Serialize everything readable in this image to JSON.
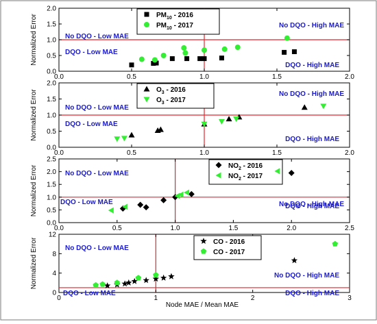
{
  "figure": {
    "ylabel": "Normalized Error",
    "xlabel": "Node MAE / Mean MAE"
  },
  "colors": {
    "threshold": "#e8232b",
    "zone_text": "#1a1acc",
    "series_2016": "#000000",
    "series_2017": "#33ee33"
  },
  "chart_data": [
    {
      "type": "scatter",
      "id": "pm10",
      "xlim": [
        0,
        2.0
      ],
      "ylim": [
        0,
        2.0
      ],
      "xticks": [
        "0.0",
        "0.5",
        "1.0",
        "1.5",
        "2.0"
      ],
      "xtick_values": [
        0,
        0.5,
        1.0,
        1.5,
        2.0
      ],
      "yticks": [
        "0.0",
        "0.5",
        "1.0",
        "1.5",
        "2.0"
      ],
      "ytick_values": [
        0,
        0.5,
        1.0,
        1.5,
        2.0
      ],
      "thresholds": {
        "x": 1.0,
        "y": 1.0
      },
      "zones": {
        "top_left": "No DQO - Low MAE",
        "top_right": "No DQO - High MAE",
        "bottom_left": "DQO - Low MAE",
        "bottom_right": "DQO - High MAE"
      },
      "legend_placement": "top-center",
      "series": [
        {
          "name": "PM",
          "sub": "10",
          "suffix": " - 2016",
          "marker": "square",
          "points": [
            [
              0.5,
              0.2
            ],
            [
              0.65,
              0.25
            ],
            [
              0.67,
              0.26
            ],
            [
              0.78,
              0.4
            ],
            [
              0.88,
              0.4
            ],
            [
              0.97,
              0.4
            ],
            [
              1.0,
              0.4
            ],
            [
              1.12,
              0.42
            ],
            [
              1.55,
              0.6
            ],
            [
              1.62,
              0.62
            ]
          ]
        },
        {
          "name": "PM",
          "sub": "10",
          "suffix": " - 2017",
          "marker": "circle",
          "points": [
            [
              0.57,
              0.38
            ],
            [
              0.66,
              0.36
            ],
            [
              0.72,
              0.5
            ],
            [
              0.86,
              0.74
            ],
            [
              0.87,
              0.58
            ],
            [
              1.0,
              0.67
            ],
            [
              1.14,
              0.7
            ],
            [
              1.23,
              0.76
            ],
            [
              1.57,
              1.05
            ]
          ]
        }
      ]
    },
    {
      "type": "scatter",
      "id": "o3",
      "xlim": [
        0,
        2.0
      ],
      "ylim": [
        0,
        2.0
      ],
      "xticks": [
        "0.0",
        "0.5",
        "1.0",
        "1.5",
        "2.0"
      ],
      "xtick_values": [
        0,
        0.5,
        1.0,
        1.5,
        2.0
      ],
      "yticks": [
        "0.0",
        "0.5",
        "1.0",
        "1.5",
        "2.0"
      ],
      "ytick_values": [
        0,
        0.5,
        1.0,
        1.5,
        2.0
      ],
      "thresholds": {
        "x": 1.0,
        "y": 1.0
      },
      "zones": {
        "top_left": "No DQO - Low MAE",
        "top_right": "No DQO - High MAE",
        "bottom_left": "DQO - Low MAE",
        "bottom_right": "DQO - High MAE"
      },
      "legend_placement": "top-center",
      "series": [
        {
          "name": "O",
          "sub": "3",
          "suffix": " - 2016",
          "marker": "triangle-up",
          "points": [
            [
              0.5,
              0.38
            ],
            [
              0.68,
              0.52
            ],
            [
              0.7,
              0.55
            ],
            [
              1.0,
              0.72
            ],
            [
              1.17,
              0.88
            ],
            [
              1.24,
              0.94
            ],
            [
              1.69,
              1.24
            ]
          ]
        },
        {
          "name": "O",
          "sub": "3",
          "suffix": " - 2017",
          "marker": "triangle-down",
          "points": [
            [
              0.4,
              0.26
            ],
            [
              0.45,
              0.28
            ],
            [
              1.0,
              0.72
            ],
            [
              1.12,
              0.8
            ],
            [
              1.22,
              0.88
            ],
            [
              1.82,
              1.28
            ]
          ]
        }
      ]
    },
    {
      "type": "scatter",
      "id": "no2",
      "xlim": [
        0,
        2.5
      ],
      "ylim": [
        0,
        2.5
      ],
      "xticks": [
        "0.0",
        "0.5",
        "1.0",
        "1.5",
        "2.0",
        "2.5"
      ],
      "xtick_values": [
        0,
        0.5,
        1.0,
        1.5,
        2.0,
        2.5
      ],
      "yticks": [
        "0.0",
        "0.5",
        "1.0",
        "1.5",
        "2.0",
        "2.5"
      ],
      "ytick_values": [
        0,
        0.5,
        1.0,
        1.5,
        2.0,
        2.5
      ],
      "thresholds": {
        "x": 1.0,
        "y": 1.0
      },
      "zones": {
        "top_left": "No DQO - Low MAE",
        "top_right": "No DQO - High MAE",
        "bottom_left": "DQO - Low MAE",
        "bottom_right": "DQO - High MAE"
      },
      "legend_placement": "top-center",
      "series": [
        {
          "name": "NO",
          "sub": "2",
          "suffix": " - 2016",
          "marker": "diamond",
          "points": [
            [
              0.55,
              0.55
            ],
            [
              0.7,
              0.7
            ],
            [
              0.75,
              0.6
            ],
            [
              0.9,
              0.88
            ],
            [
              1.0,
              1.0
            ],
            [
              1.14,
              1.12
            ],
            [
              2.0,
              1.95
            ]
          ]
        },
        {
          "name": "NO",
          "sub": "2",
          "suffix": " - 2017",
          "marker": "triangle-left",
          "points": [
            [
              0.45,
              0.48
            ],
            [
              0.57,
              0.62
            ],
            [
              1.02,
              1.05
            ],
            [
              1.05,
              1.1
            ],
            [
              1.1,
              1.18
            ],
            [
              1.88,
              2.02
            ]
          ]
        }
      ]
    },
    {
      "type": "scatter",
      "id": "co",
      "xlim": [
        0,
        3
      ],
      "ylim": [
        0,
        12
      ],
      "xticks": [
        "0",
        "1",
        "2",
        "3"
      ],
      "xtick_values": [
        0,
        1,
        2,
        3
      ],
      "yticks": [
        "0",
        "4",
        "8",
        "12"
      ],
      "ytick_values": [
        0,
        4,
        8,
        12
      ],
      "thresholds": {
        "x": 1.0,
        "y": 1.0
      },
      "zones": {
        "top_left": "No DQO - Low MAE",
        "top_right": "No DQO - High MAE",
        "bottom_left": "DQO - Low MAE",
        "bottom_right": "DQO - High MAE"
      },
      "legend_placement": "top-center",
      "series": [
        {
          "name": "CO",
          "sub": "",
          "suffix": " - 2016",
          "marker": "star",
          "points": [
            [
              0.5,
              1.4
            ],
            [
              0.6,
              1.6
            ],
            [
              0.68,
              1.8
            ],
            [
              0.72,
              2.0
            ],
            [
              0.78,
              2.3
            ],
            [
              0.9,
              2.5
            ],
            [
              1.0,
              2.8
            ],
            [
              1.08,
              3.0
            ],
            [
              1.16,
              3.3
            ],
            [
              2.43,
              6.6
            ]
          ]
        },
        {
          "name": "CO",
          "sub": "",
          "suffix": " - 2017",
          "marker": "pentagon",
          "points": [
            [
              0.38,
              1.5
            ],
            [
              0.45,
              1.7
            ],
            [
              0.6,
              2.0
            ],
            [
              0.82,
              3.0
            ],
            [
              1.0,
              3.6
            ],
            [
              2.85,
              10.0
            ]
          ]
        }
      ]
    }
  ]
}
